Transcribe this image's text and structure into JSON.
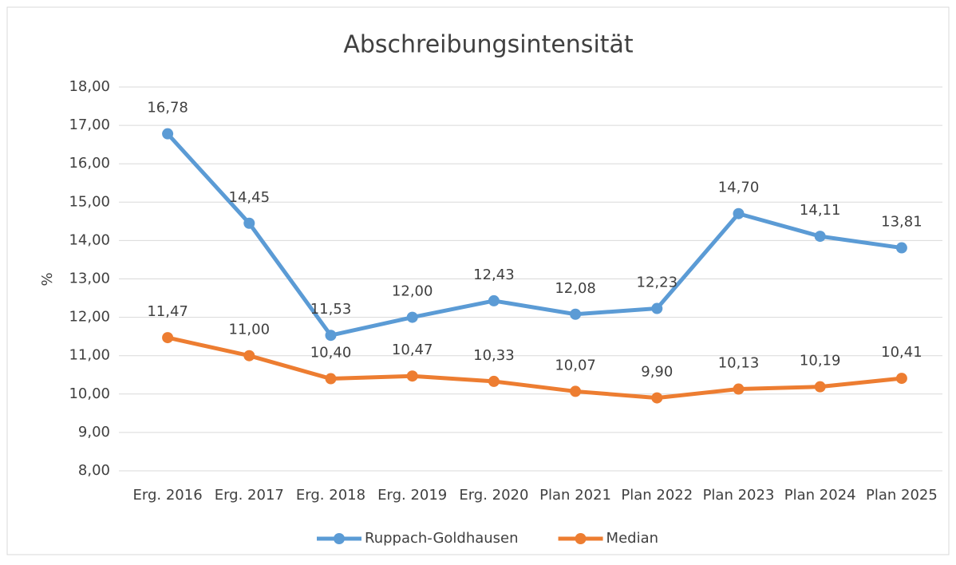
{
  "chart_data": {
    "type": "line",
    "title": "Abschreibungsintensität",
    "y_label": "%",
    "categories": [
      "Erg. 2016",
      "Erg. 2017",
      "Erg. 2018",
      "Erg. 2019",
      "Erg. 2020",
      "Plan 2021",
      "Plan 2022",
      "Plan 2023",
      "Plan 2024",
      "Plan 2025"
    ],
    "series": [
      {
        "name": "Ruppach-Goldhausen",
        "color": "#5b9bd5",
        "values": [
          16.78,
          14.45,
          11.53,
          12.0,
          12.43,
          12.08,
          12.23,
          14.7,
          14.11,
          13.81
        ],
        "value_labels": [
          "16,78",
          "14,45",
          "11,53",
          "12,00",
          "12,43",
          "12,08",
          "12,23",
          "14,70",
          "14,11",
          "13,81"
        ]
      },
      {
        "name": "Median",
        "color": "#ed7d31",
        "values": [
          11.47,
          11.0,
          10.4,
          10.47,
          10.33,
          10.07,
          9.9,
          10.13,
          10.19,
          10.41
        ],
        "value_labels": [
          "11,47",
          "11,00",
          "10,40",
          "10,47",
          "10,33",
          "10,07",
          "9,90",
          "10,13",
          "10,19",
          "10,41"
        ]
      }
    ],
    "ylim": [
      8,
      18
    ],
    "yticks": [
      {
        "value": 8,
        "label": "8,00"
      },
      {
        "value": 9,
        "label": "9,00"
      },
      {
        "value": 10,
        "label": "10,00"
      },
      {
        "value": 11,
        "label": "11,00"
      },
      {
        "value": 12,
        "label": "12,00"
      },
      {
        "value": 13,
        "label": "13,00"
      },
      {
        "value": 14,
        "label": "14,00"
      },
      {
        "value": 15,
        "label": "15,00"
      },
      {
        "value": 16,
        "label": "16,00"
      },
      {
        "value": 17,
        "label": "17,00"
      },
      {
        "value": 18,
        "label": "18,00"
      }
    ],
    "grid": true,
    "legend": "bottom"
  }
}
